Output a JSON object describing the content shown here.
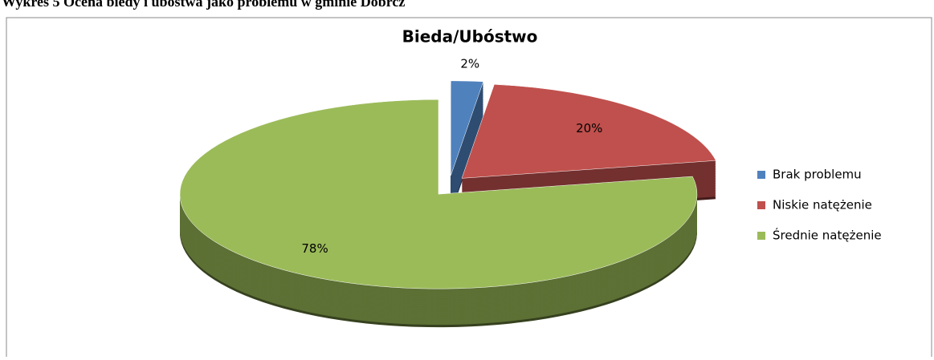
{
  "caption": "Wykres 5 Ocena biedy i ubóstwa jako problemu w gminie Dobrcz",
  "chart_data": {
    "type": "pie3d",
    "title": "Bieda/Ubóstwo",
    "categories": [
      "Brak problemu",
      "Niskie natężenie",
      "Średnie natężenie"
    ],
    "values": [
      2,
      20,
      78
    ],
    "value_labels": [
      "2%",
      "20%",
      "78%"
    ],
    "colors": [
      "#4f81bd",
      "#c0504d",
      "#9bbb59"
    ],
    "legend": "right"
  }
}
